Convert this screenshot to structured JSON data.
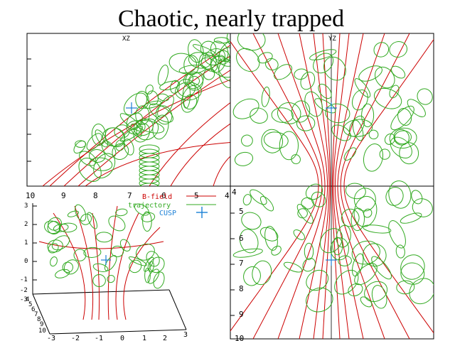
{
  "title": "Chaotic, nearly trapped",
  "panels": {
    "xz": {
      "label": "XZ",
      "x_ticks": [
        "10",
        "9",
        "8",
        "7",
        "6",
        "5",
        "4"
      ]
    },
    "yz": {
      "label": "YZ",
      "y_ticks": [
        "4",
        "5",
        "6",
        "7",
        "8",
        "9",
        "10"
      ]
    },
    "three_d": {
      "x_ticks": [
        "-3",
        "-2",
        "-1",
        "0",
        "1",
        "2",
        "3"
      ],
      "z_ticks": [
        "4",
        "5",
        "6",
        "7",
        "8",
        "9",
        "10"
      ],
      "left_ticks": [
        "3",
        "2",
        "1",
        "0",
        "-1",
        "-2",
        "-3"
      ]
    }
  },
  "legend": [
    {
      "label": "B-field",
      "color": "#cc0000",
      "symbol": "line"
    },
    {
      "label": "trajectory",
      "color": "#33aa22",
      "symbol": "line"
    },
    {
      "label": "CUSP",
      "color": "#1a7fd6",
      "symbol": "plus"
    }
  ],
  "colors": {
    "bfield": "#cc0000",
    "trajectory": "#33aa22",
    "cusp": "#1a7fd6",
    "frame": "#000000"
  }
}
